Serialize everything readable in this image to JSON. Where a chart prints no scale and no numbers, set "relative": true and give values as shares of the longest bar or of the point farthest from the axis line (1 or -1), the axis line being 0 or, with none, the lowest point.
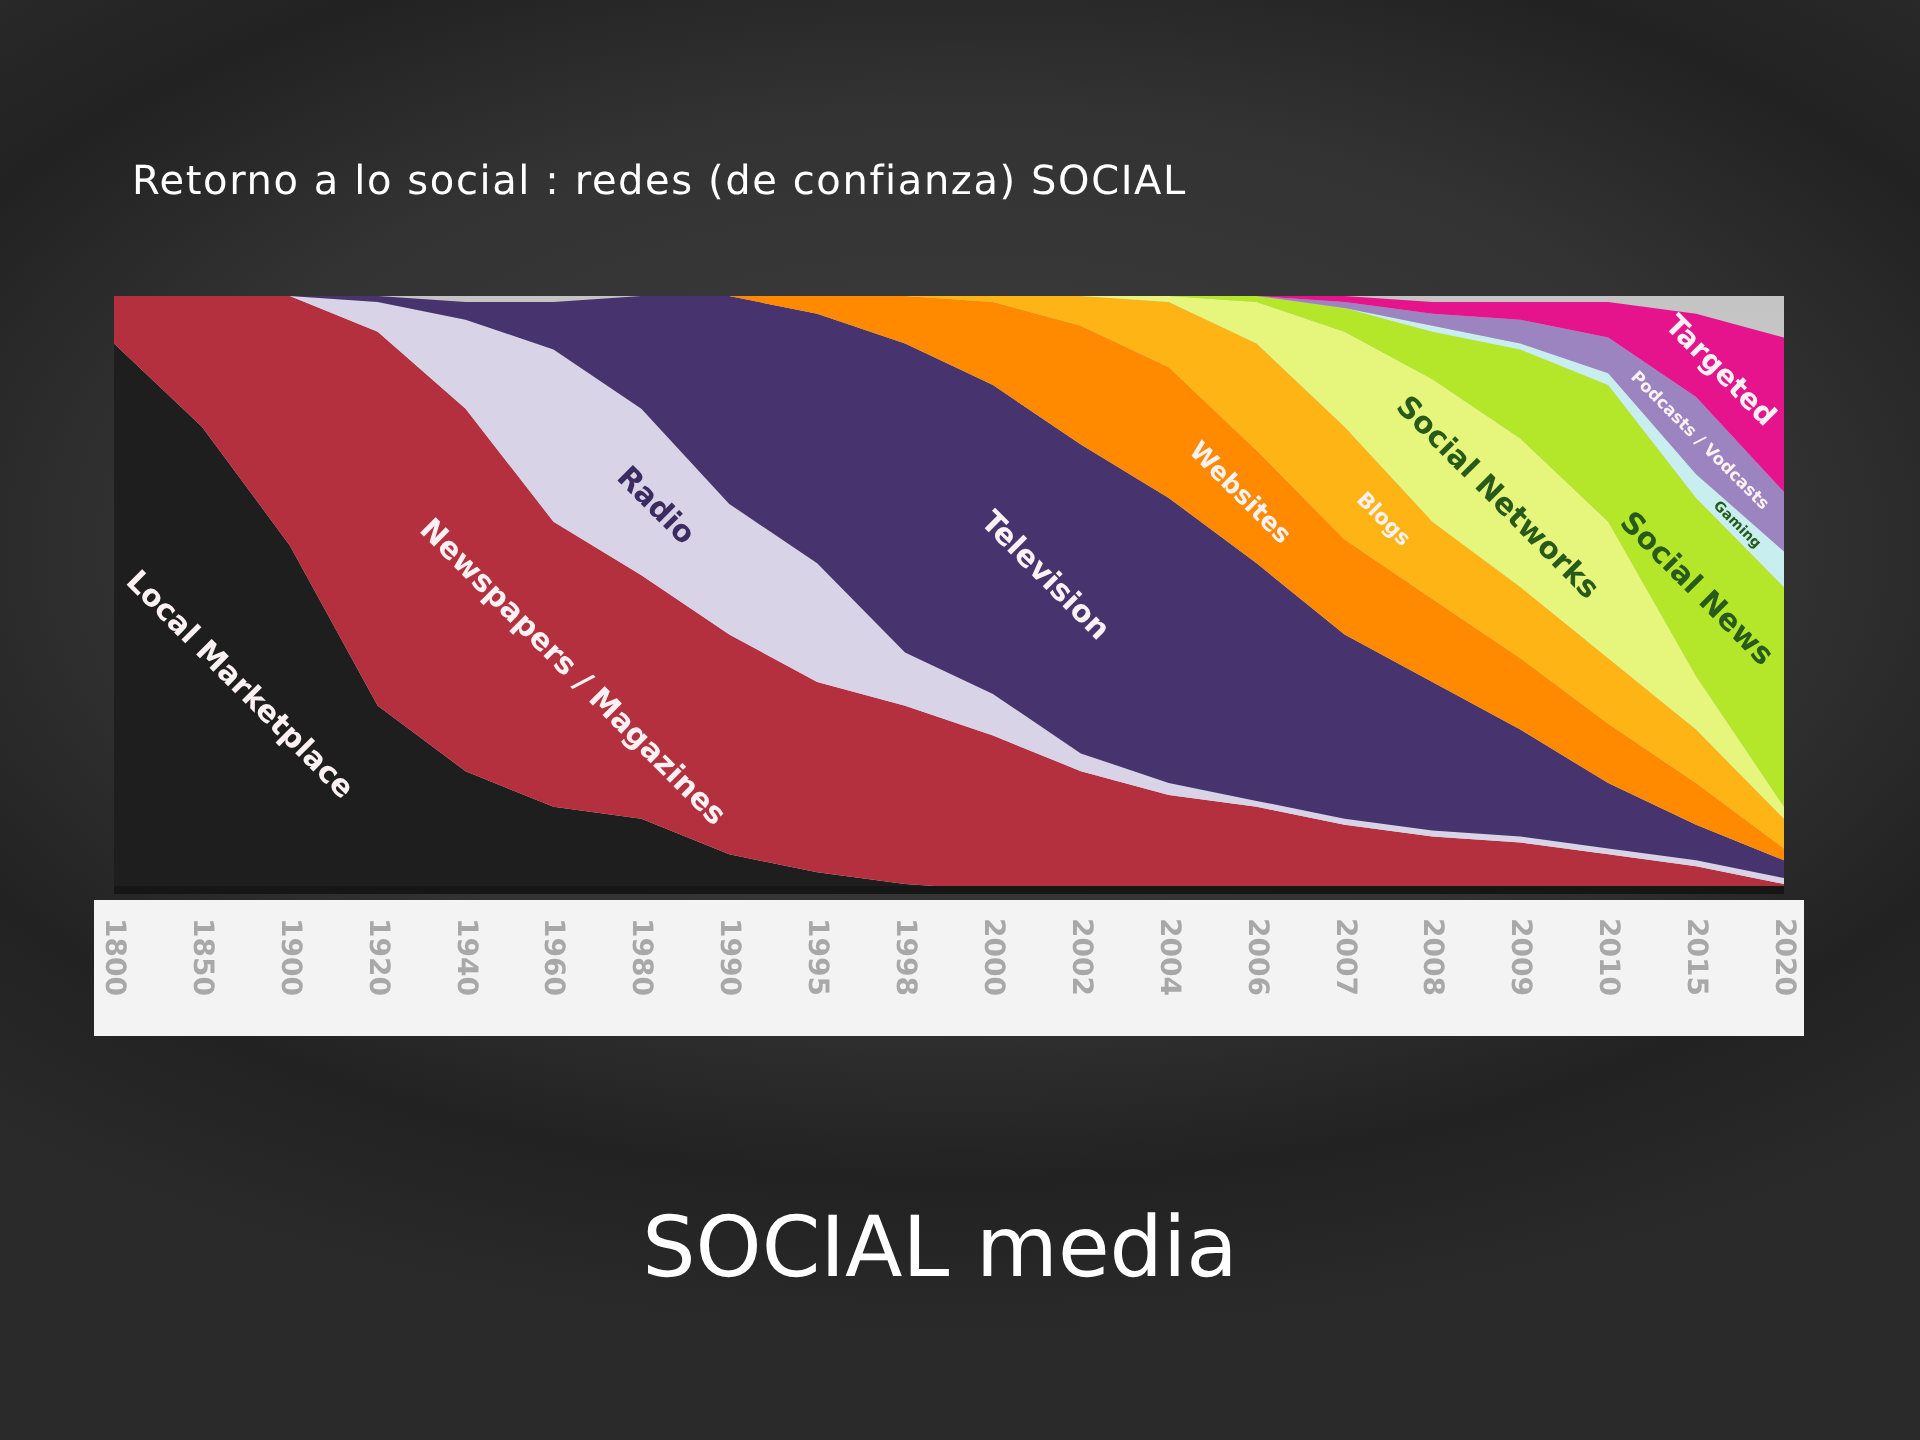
{
  "chart_data": {
    "type": "area",
    "title": "SOCIAL media",
    "subtitle": "Retorno a lo social : redes (de confianza) SOCIAL",
    "relative": true,
    "stacked": true,
    "categories": [
      "1800",
      "1850",
      "1900",
      "1920",
      "1940",
      "1960",
      "1980",
      "1990",
      "1995",
      "1998",
      "2000",
      "2002",
      "2004",
      "2006",
      "2007",
      "2008",
      "2009",
      "2010",
      "2015",
      "2020"
    ],
    "series": [
      {
        "name": "Local Marketplace",
        "color": "#1e1e1e",
        "values": [
          0.92,
          0.78,
          0.58,
          0.31,
          0.2,
          0.14,
          0.12,
          0.06,
          0.03,
          0.01,
          0,
          0,
          0,
          0,
          0,
          0,
          0,
          0,
          0,
          0
        ]
      },
      {
        "name": "Newspapers / Magazines",
        "color": "#b5303f",
        "values": [
          0.08,
          0.22,
          0.42,
          0.63,
          0.61,
          0.48,
          0.41,
          0.37,
          0.32,
          0.3,
          0.26,
          0.2,
          0.16,
          0.14,
          0.11,
          0.09,
          0.08,
          0.06,
          0.04,
          0.01
        ]
      },
      {
        "name": "Radio",
        "color": "#d9d3e8",
        "values": [
          0,
          0,
          0,
          0.05,
          0.15,
          0.29,
          0.28,
          0.22,
          0.2,
          0.09,
          0.07,
          0.03,
          0.02,
          0.01,
          0.01,
          0.01,
          0.01,
          0.01,
          0.01,
          0.01
        ]
      },
      {
        "name": "Television",
        "color": "#47336e",
        "values": [
          0,
          0,
          0,
          0.01,
          0.03,
          0.08,
          0.19,
          0.35,
          0.42,
          0.52,
          0.52,
          0.52,
          0.48,
          0.4,
          0.31,
          0.25,
          0.18,
          0.11,
          0.06,
          0.03
        ]
      },
      {
        "name": "Websites",
        "color": "#ff8a00",
        "values": [
          0,
          0,
          0,
          0,
          0,
          0,
          0,
          0,
          0.03,
          0.08,
          0.14,
          0.2,
          0.22,
          0.19,
          0.16,
          0.14,
          0.12,
          0.1,
          0.07,
          0.02
        ]
      },
      {
        "name": "Blogs",
        "color": "#fdb414",
        "values": [
          0,
          0,
          0,
          0,
          0,
          0,
          0,
          0,
          0,
          0,
          0.01,
          0.05,
          0.11,
          0.18,
          0.19,
          0.13,
          0.12,
          0.11,
          0.09,
          0.05
        ]
      },
      {
        "name": "Social Networks",
        "color": "#e6f57c",
        "values": [
          0,
          0,
          0,
          0,
          0,
          0,
          0,
          0,
          0,
          0,
          0,
          0,
          0.01,
          0.07,
          0.16,
          0.24,
          0.25,
          0.23,
          0.09,
          0.02
        ]
      },
      {
        "name": "Social News",
        "color": "#b4e62a",
        "values": [
          0,
          0,
          0,
          0,
          0,
          0,
          0,
          0,
          0,
          0,
          0,
          0,
          0,
          0.01,
          0.04,
          0.08,
          0.15,
          0.23,
          0.3,
          0.37
        ]
      },
      {
        "name": "Gaming",
        "color": "#c9eef0",
        "values": [
          0,
          0,
          0,
          0,
          0,
          0,
          0,
          0,
          0,
          0,
          0,
          0,
          0,
          0,
          0,
          0.01,
          0.01,
          0.02,
          0.04,
          0.06
        ]
      },
      {
        "name": "Podcasts / Vodcasts",
        "color": "#9b84c0",
        "values": [
          0,
          0,
          0,
          0,
          0,
          0,
          0,
          0,
          0,
          0,
          0,
          0,
          0,
          0,
          0.01,
          0.02,
          0.04,
          0.06,
          0.13,
          0.1
        ]
      },
      {
        "name": "Targeted",
        "color": "#e6148c",
        "values": [
          0,
          0,
          0,
          0,
          0,
          0,
          0,
          0,
          0,
          0,
          0,
          0,
          0,
          0,
          0.01,
          0.02,
          0.03,
          0.06,
          0.14,
          0.26
        ]
      }
    ]
  }
}
